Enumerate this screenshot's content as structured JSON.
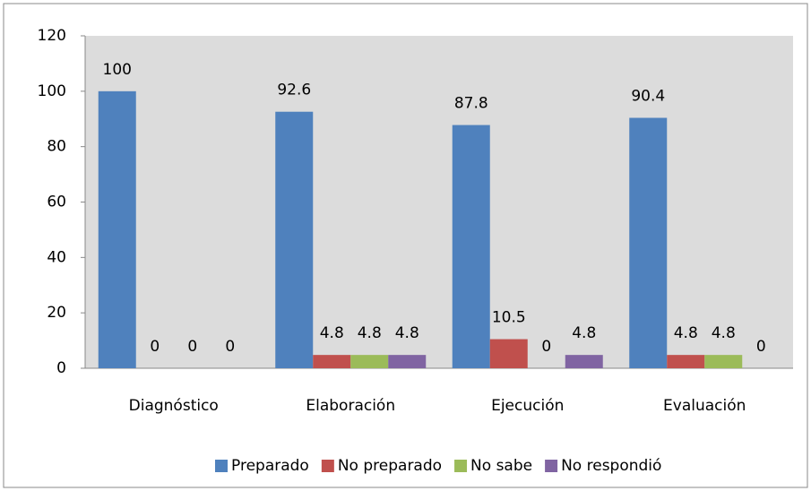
{
  "chart_data": {
    "type": "bar",
    "categories": [
      "Diagnóstico",
      "Elaboración",
      "Ejecución",
      "Evaluación"
    ],
    "series": [
      {
        "name": "Preparado",
        "color": "#4f81bd",
        "values": [
          100,
          92.6,
          87.8,
          90.4
        ]
      },
      {
        "name": "No preparado",
        "color": "#c0504d",
        "values": [
          0,
          4.8,
          10.5,
          4.8
        ]
      },
      {
        "name": "No sabe",
        "color": "#9bbb59",
        "values": [
          0,
          4.8,
          0,
          4.8
        ]
      },
      {
        "name": "No respondió",
        "color": "#8064a2",
        "values": [
          0,
          4.8,
          4.8,
          0
        ]
      }
    ],
    "ylim": [
      0,
      120
    ],
    "yticks": [
      0,
      20,
      40,
      60,
      80,
      100,
      120
    ],
    "grid": false,
    "legend": "bottom"
  }
}
